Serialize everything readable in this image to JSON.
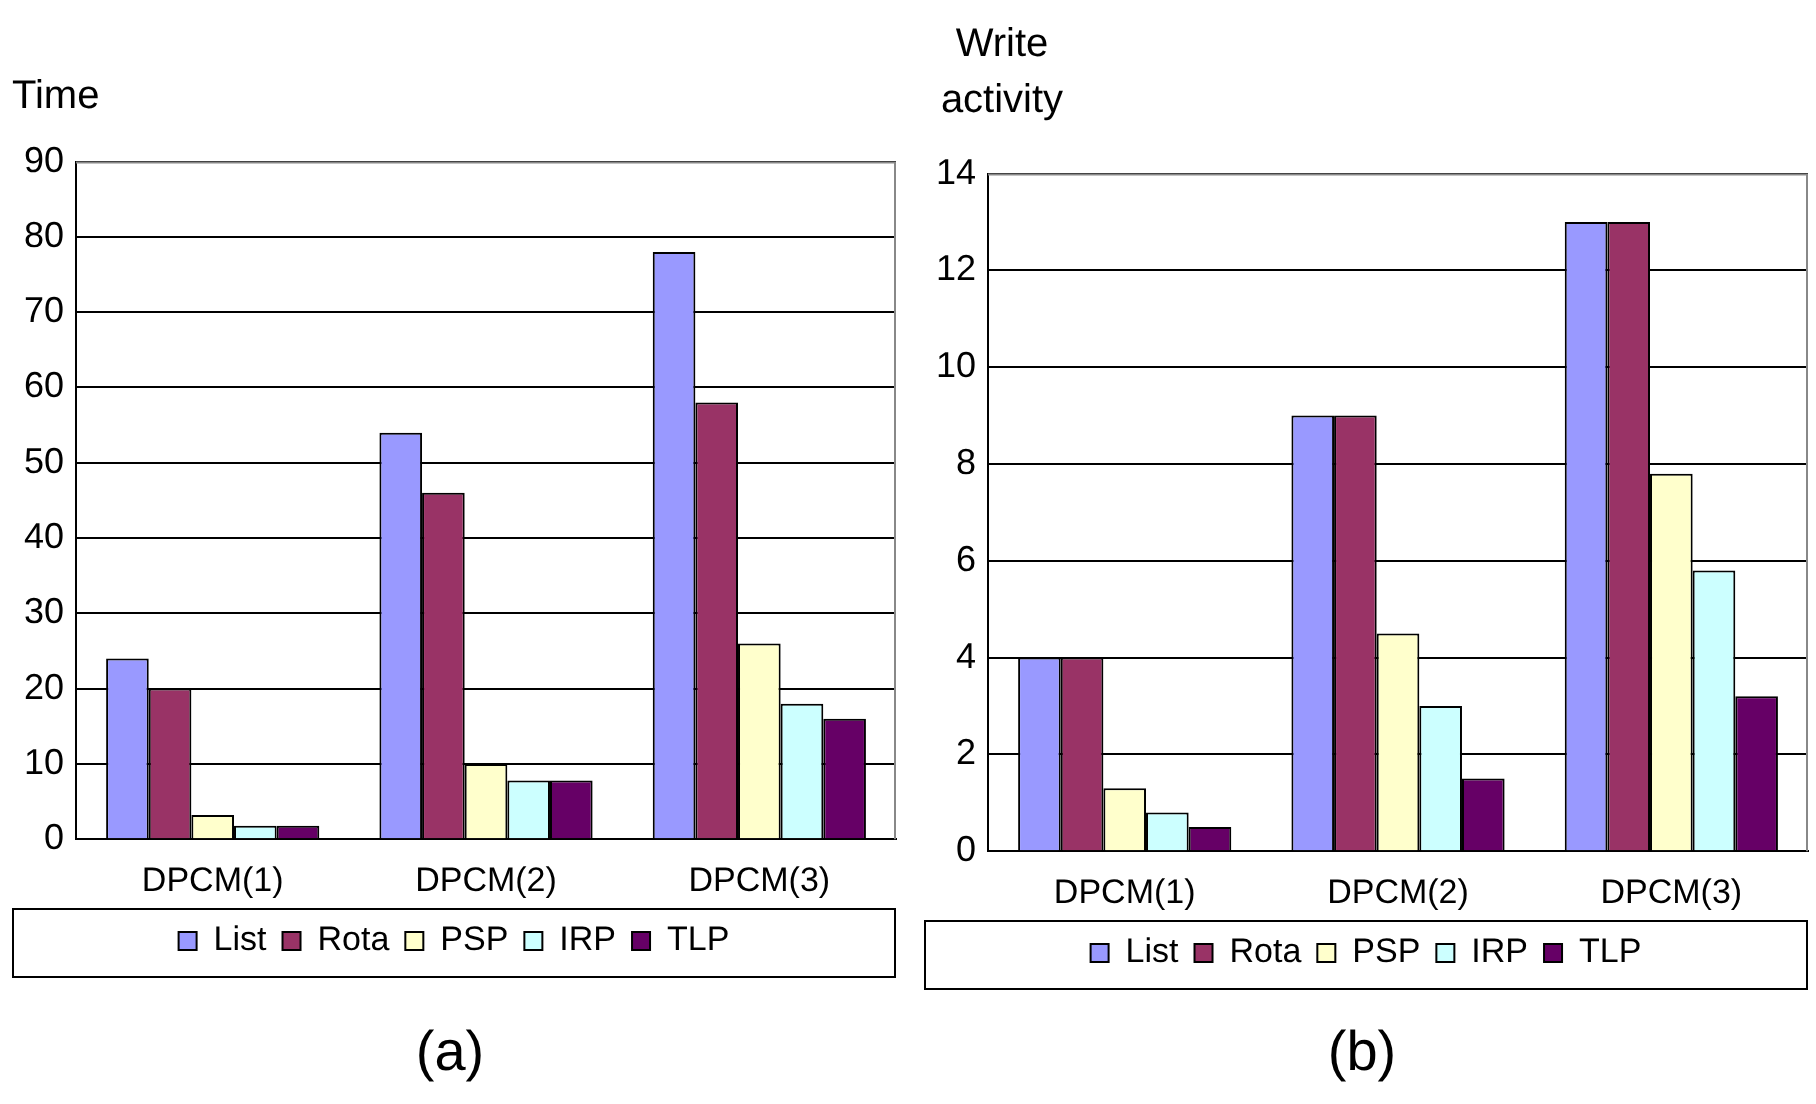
{
  "chart_data": [
    {
      "type": "bar",
      "ylabel": "Time",
      "categories": [
        "DPCM(1)",
        "DPCM(2)",
        "DPCM(3)"
      ],
      "series": [
        {
          "name": "List",
          "color": "#9999ff",
          "values": [
            24,
            54,
            78
          ]
        },
        {
          "name": "Rota",
          "color": "#993366",
          "values": [
            20,
            46,
            58
          ]
        },
        {
          "name": "PSP",
          "color": "#ffffcc",
          "values": [
            3.2,
            10,
            26
          ]
        },
        {
          "name": "IRP",
          "color": "#ccffff",
          "values": [
            1.8,
            7.8,
            18
          ]
        },
        {
          "name": "TLP",
          "color": "#660066",
          "values": [
            1.8,
            7.8,
            16
          ]
        }
      ],
      "ylim": [
        0,
        90
      ],
      "yticks": [
        0,
        10,
        20,
        30,
        40,
        50,
        60,
        70,
        80,
        90
      ],
      "grid": "y",
      "legend": "bottom",
      "annotations": [
        "(a)"
      ]
    },
    {
      "type": "bar",
      "ylabel": "Write activity",
      "categories": [
        "DPCM(1)",
        "DPCM(2)",
        "DPCM(3)"
      ],
      "series": [
        {
          "name": "List",
          "color": "#9999ff",
          "values": [
            4,
            9,
            13
          ]
        },
        {
          "name": "Rota",
          "color": "#993366",
          "values": [
            4,
            9,
            13
          ]
        },
        {
          "name": "PSP",
          "color": "#ffffcc",
          "values": [
            1.3,
            4.5,
            7.8
          ]
        },
        {
          "name": "IRP",
          "color": "#ccffff",
          "values": [
            0.8,
            3,
            5.8
          ]
        },
        {
          "name": "TLP",
          "color": "#660066",
          "values": [
            0.5,
            1.5,
            3.2
          ]
        }
      ],
      "ylim": [
        0,
        14
      ],
      "yticks": [
        0,
        2,
        4,
        6,
        8,
        10,
        12,
        14
      ],
      "grid": "y",
      "legend": "bottom",
      "annotations": [
        "(b)"
      ]
    }
  ]
}
